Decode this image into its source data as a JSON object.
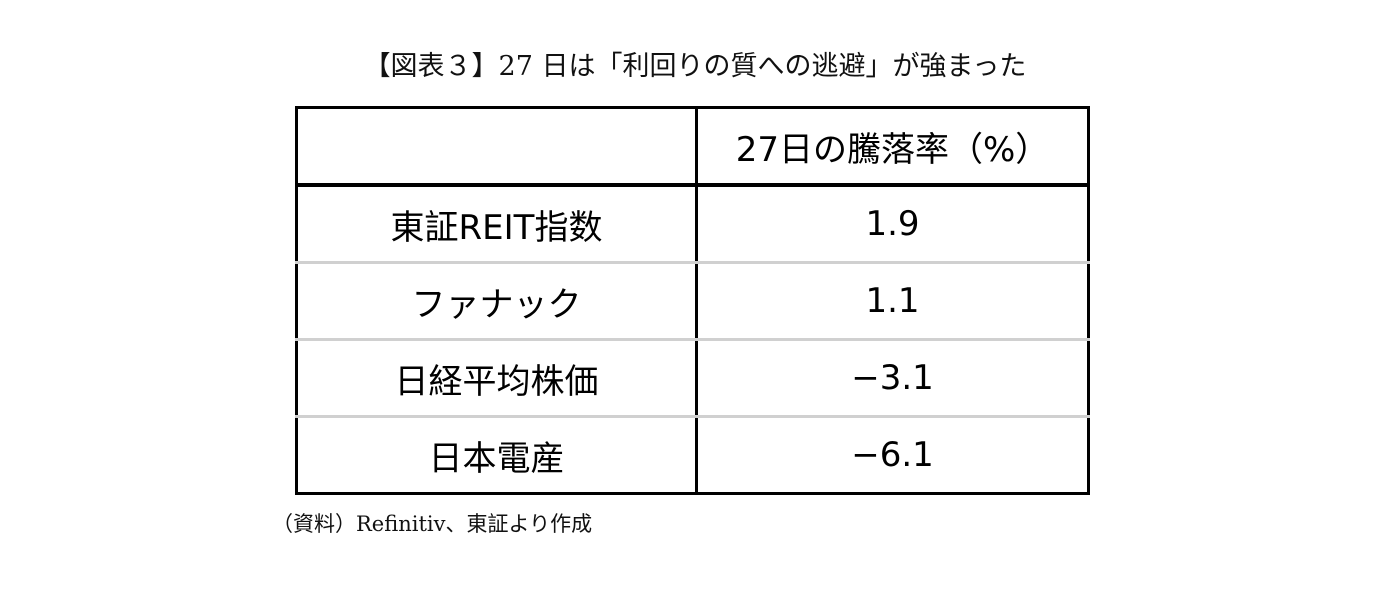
{
  "title": "【図表３】27 日は「利回りの質への逃避」が強まった",
  "table": {
    "header": [
      "",
      "27日の騰落率（%）"
    ],
    "rows": [
      {
        "name": "東証REIT指数",
        "value": "1.9"
      },
      {
        "name": "ファナック",
        "value": "1.1"
      },
      {
        "name": "日経平均株価",
        "value": "−3.1"
      },
      {
        "name": "日本電産",
        "value": "−6.1"
      }
    ]
  },
  "source_note": "（資料）Refinitiv、東証より作成"
}
